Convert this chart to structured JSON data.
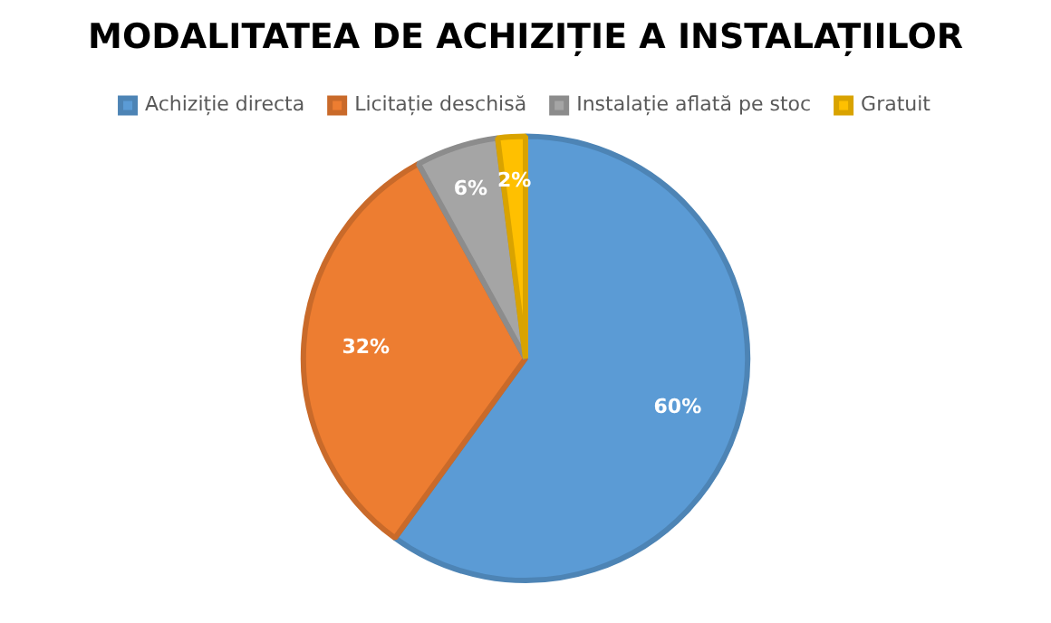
{
  "chart_data": {
    "type": "pie",
    "title": "MODALITATEA DE ACHIZIȚIE A INSTALAȚIILOR",
    "categories": [
      "Achiziție directa",
      "Licitație deschisă",
      "Instalație aflată pe stoc",
      "Gratuit"
    ],
    "values": [
      60,
      32,
      6,
      2
    ],
    "colors": [
      "#5b9bd5",
      "#ed7d31",
      "#a5a5a5",
      "#ffc000"
    ],
    "value_labels": [
      "60%",
      "32%",
      "6%",
      "2%"
    ],
    "legend": "top"
  }
}
